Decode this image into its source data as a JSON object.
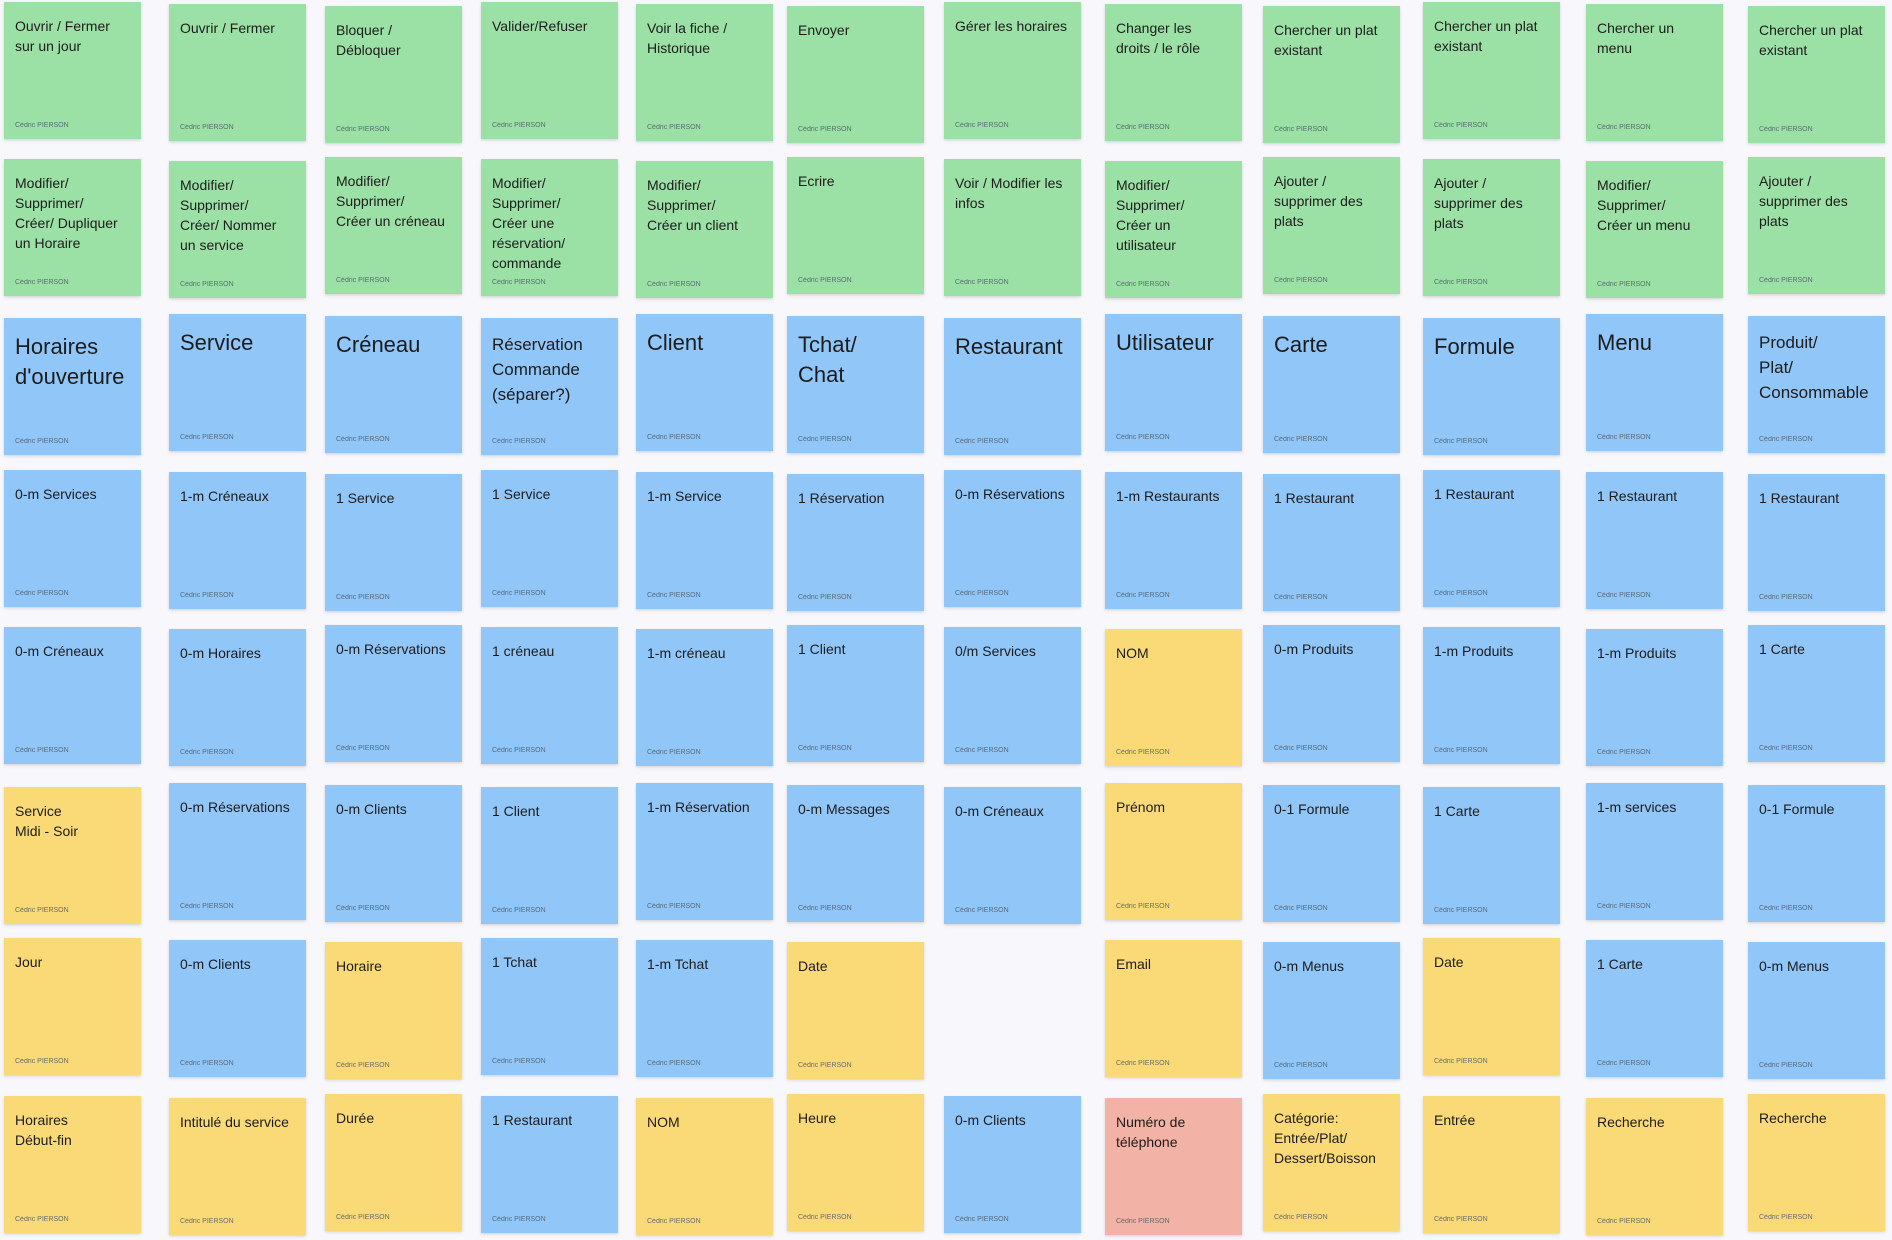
{
  "board": {
    "author": "Cédric PIERSON",
    "colors": {
      "green": "#9be0a5",
      "blue": "#91c6f8",
      "yellow": "#f9da77",
      "red": "#f2b2a5",
      "background": "#f8f7fc"
    },
    "columns": [
      {
        "notes": [
          {
            "text": "Ouvrir / Fermer\nsur un jour",
            "color": "green"
          },
          {
            "text": "Modifier/\nSupprimer/\nCréer/ Dupliquer\nun Horaire",
            "color": "green"
          },
          {
            "text": "Horaires\nd'ouverture",
            "color": "blue",
            "title": true
          },
          {
            "text": "0-m Services",
            "color": "blue"
          },
          {
            "text": "0-m Créneaux",
            "color": "blue"
          },
          {
            "text": "Service\nMidi - Soir",
            "color": "yellow"
          },
          {
            "text": "Jour",
            "color": "yellow"
          },
          {
            "text": "Horaires\nDébut-fin",
            "color": "yellow"
          }
        ]
      },
      {
        "notes": [
          {
            "text": "Ouvrir / Fermer",
            "color": "green"
          },
          {
            "text": "Modifier/\nSupprimer/\nCréer/ Nommer\nun service",
            "color": "green"
          },
          {
            "text": "Service",
            "color": "blue",
            "title": true
          },
          {
            "text": "1-m Créneaux",
            "color": "blue"
          },
          {
            "text": "0-m Horaires",
            "color": "blue"
          },
          {
            "text": "0-m Réservations",
            "color": "blue"
          },
          {
            "text": "0-m Clients",
            "color": "blue"
          },
          {
            "text": "Intitulé du service",
            "color": "yellow"
          }
        ]
      },
      {
        "notes": [
          {
            "text": "Bloquer /\nDébloquer",
            "color": "green"
          },
          {
            "text": "Modifier/\nSupprimer/\nCréer un créneau",
            "color": "green"
          },
          {
            "text": "Créneau",
            "color": "blue",
            "title": true
          },
          {
            "text": "1 Service",
            "color": "blue"
          },
          {
            "text": "0-m Réservations",
            "color": "blue"
          },
          {
            "text": "0-m Clients",
            "color": "blue"
          },
          {
            "text": "Horaire",
            "color": "yellow"
          },
          {
            "text": "Durée",
            "color": "yellow"
          }
        ]
      },
      {
        "notes": [
          {
            "text": "Valider/Refuser",
            "color": "green"
          },
          {
            "text": "Modifier/\nSupprimer/\nCréer une\nréservation/\ncommande",
            "color": "green"
          },
          {
            "text": "Réservation\nCommande\n(séparer?)",
            "color": "blue",
            "title": true
          },
          {
            "text": "1 Service",
            "color": "blue"
          },
          {
            "text": "1 créneau",
            "color": "blue"
          },
          {
            "text": "1 Client",
            "color": "blue"
          },
          {
            "text": "1 Tchat",
            "color": "blue"
          },
          {
            "text": "1 Restaurant",
            "color": "blue"
          }
        ]
      },
      {
        "notes": [
          {
            "text": "Voir la fiche /\nHistorique",
            "color": "green"
          },
          {
            "text": "Modifier/\nSupprimer/\nCréer un client",
            "color": "green"
          },
          {
            "text": "Client",
            "color": "blue",
            "title": true
          },
          {
            "text": "1-m Service",
            "color": "blue"
          },
          {
            "text": "1-m créneau",
            "color": "blue"
          },
          {
            "text": "1-m Réservation",
            "color": "blue"
          },
          {
            "text": "1-m Tchat",
            "color": "blue"
          },
          {
            "text": "NOM",
            "color": "yellow"
          }
        ]
      },
      {
        "notes": [
          {
            "text": "Envoyer",
            "color": "green"
          },
          {
            "text": "Ecrire",
            "color": "green"
          },
          {
            "text": "Tchat/\nChat",
            "color": "blue",
            "title": true
          },
          {
            "text": "1 Réservation",
            "color": "blue"
          },
          {
            "text": "1 Client",
            "color": "blue"
          },
          {
            "text": "0-m Messages",
            "color": "blue"
          },
          {
            "text": "Date",
            "color": "yellow"
          },
          {
            "text": "Heure",
            "color": "yellow"
          }
        ]
      },
      {
        "notes": [
          {
            "text": "Gérer les horaires",
            "color": "green"
          },
          {
            "text": "Voir / Modifier les\ninfos",
            "color": "green"
          },
          {
            "text": "Restaurant",
            "color": "blue",
            "title": true
          },
          {
            "text": "0-m Réservations",
            "color": "blue"
          },
          {
            "text": "0/m Services",
            "color": "blue"
          },
          {
            "text": "0-m Créneaux",
            "color": "blue"
          },
          {
            "text": "0-m Clients",
            "color": "blue"
          }
        ]
      },
      {
        "notes": [
          {
            "text": "Changer les\ndroits / le rôle",
            "color": "green"
          },
          {
            "text": "Modifier/\nSupprimer/\nCréer un\nutilisateur",
            "color": "green"
          },
          {
            "text": "Utilisateur",
            "color": "blue",
            "title": true
          },
          {
            "text": "1-m Restaurants",
            "color": "blue"
          },
          {
            "text": "NOM",
            "color": "yellow"
          },
          {
            "text": "Prénom",
            "color": "yellow"
          },
          {
            "text": "Email",
            "color": "yellow"
          },
          {
            "text": "Numéro de\ntéléphone",
            "color": "red"
          }
        ]
      },
      {
        "notes": [
          {
            "text": "Chercher un plat\nexistant",
            "color": "green"
          },
          {
            "text": "Ajouter /\nsupprimer des\nplats",
            "color": "green"
          },
          {
            "text": "Carte",
            "color": "blue",
            "title": true
          },
          {
            "text": "1 Restaurant",
            "color": "blue"
          },
          {
            "text": "0-m Produits",
            "color": "blue"
          },
          {
            "text": "0-1 Formule",
            "color": "blue"
          },
          {
            "text": "0-m Menus",
            "color": "blue"
          },
          {
            "text": "Catégorie:\nEntrée/Plat/\nDessert/Boisson",
            "color": "yellow"
          }
        ]
      },
      {
        "notes": [
          {
            "text": "Chercher un plat\nexistant",
            "color": "green"
          },
          {
            "text": "Ajouter /\nsupprimer des\nplats",
            "color": "green"
          },
          {
            "text": "Formule",
            "color": "blue",
            "title": true
          },
          {
            "text": "1 Restaurant",
            "color": "blue"
          },
          {
            "text": "1-m Produits",
            "color": "blue"
          },
          {
            "text": "1 Carte",
            "color": "blue"
          },
          {
            "text": "Date",
            "color": "yellow"
          },
          {
            "text": "Entrée",
            "color": "yellow"
          }
        ]
      },
      {
        "notes": [
          {
            "text": "Chercher un\nmenu",
            "color": "green"
          },
          {
            "text": "Modifier/\nSupprimer/\nCréer un menu",
            "color": "green"
          },
          {
            "text": "Menu",
            "color": "blue",
            "title": true
          },
          {
            "text": "1 Restaurant",
            "color": "blue"
          },
          {
            "text": "1-m Produits",
            "color": "blue"
          },
          {
            "text": "1-m services",
            "color": "blue"
          },
          {
            "text": "1 Carte",
            "color": "blue"
          },
          {
            "text": "Recherche",
            "color": "yellow"
          }
        ]
      },
      {
        "notes": [
          {
            "text": "Chercher un plat\nexistant",
            "color": "green"
          },
          {
            "text": "Ajouter /\nsupprimer des\nplats",
            "color": "green"
          },
          {
            "text": "Produit/\nPlat/\nConsommable",
            "color": "blue",
            "title": true
          },
          {
            "text": "1 Restaurant",
            "color": "blue"
          },
          {
            "text": "1 Carte",
            "color": "blue"
          },
          {
            "text": "0-1 Formule",
            "color": "blue"
          },
          {
            "text": "0-m Menus",
            "color": "blue"
          },
          {
            "text": "Recherche",
            "color": "yellow"
          }
        ]
      }
    ]
  }
}
